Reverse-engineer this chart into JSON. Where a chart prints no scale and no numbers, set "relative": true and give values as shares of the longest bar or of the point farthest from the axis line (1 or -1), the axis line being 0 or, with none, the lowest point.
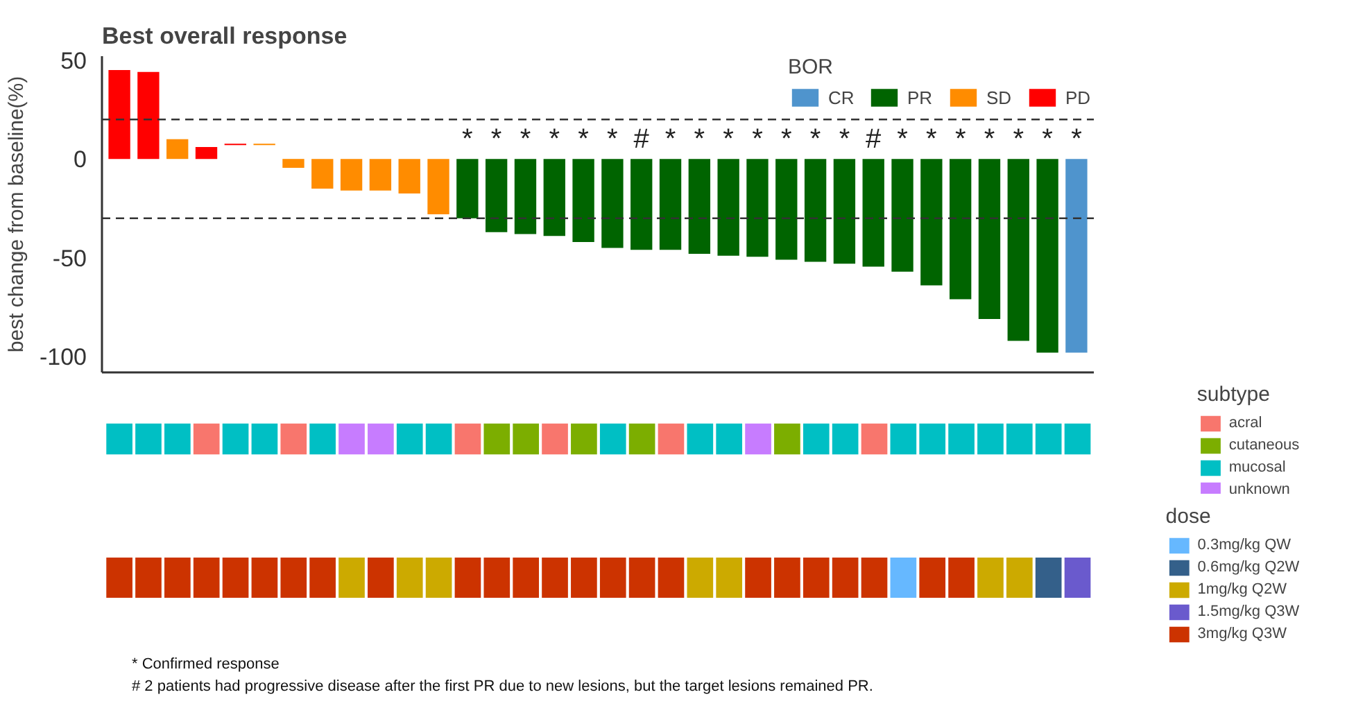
{
  "chart_data": [
    {
      "type": "bar",
      "title": "Best overall response",
      "ylabel": "best change from baseline(%)",
      "legend_title": "BOR",
      "legend": "top",
      "tick_labels": "y",
      "grid": false,
      "categories": [
        null,
        null,
        null,
        null,
        null,
        null,
        null,
        null,
        null,
        null,
        null,
        null,
        null,
        null,
        null,
        null,
        null,
        null,
        null,
        null,
        null,
        null,
        null,
        null,
        null,
        null,
        null,
        null,
        null,
        null,
        null,
        null,
        null,
        null
      ],
      "series": [
        {
          "name": "CR",
          "color": "#4f94cd",
          "values": [
            null,
            null,
            null,
            null,
            null,
            null,
            null,
            null,
            null,
            null,
            null,
            null,
            null,
            null,
            null,
            null,
            null,
            null,
            null,
            null,
            null,
            null,
            null,
            null,
            null,
            null,
            null,
            null,
            null,
            null,
            null,
            null,
            null,
            -98
          ]
        },
        {
          "name": "PR",
          "color": "#006400",
          "values": [
            null,
            null,
            null,
            null,
            null,
            null,
            null,
            null,
            null,
            null,
            null,
            null,
            -30,
            -37,
            -38,
            -39,
            -42,
            -45,
            -46,
            -46,
            -48,
            -49,
            -49.5,
            -51,
            -52,
            -53,
            -54.5,
            -57,
            -64,
            -71,
            -81,
            -92,
            -98,
            null
          ]
        },
        {
          "name": "SD",
          "color": "#ff8c00",
          "base": [
            null,
            null,
            0,
            null,
            null,
            7,
            0,
            0,
            0,
            0,
            0,
            0,
            null,
            null,
            null,
            null,
            null,
            null,
            null,
            null,
            null,
            null,
            null,
            null,
            null,
            null,
            null,
            null,
            null,
            null,
            null,
            null,
            null,
            null
          ],
          "values": [
            null,
            null,
            10,
            null,
            null,
            0.7,
            -4.5,
            -15,
            -16,
            -16,
            -17.5,
            -28,
            null,
            null,
            null,
            null,
            null,
            null,
            null,
            null,
            null,
            null,
            null,
            null,
            null,
            null,
            null,
            null,
            null,
            null,
            null,
            null,
            null,
            null
          ]
        },
        {
          "name": "PD",
          "color": "#ff0000",
          "base": [
            0,
            0,
            null,
            0,
            7,
            null,
            null,
            null,
            null,
            null,
            null,
            null,
            null,
            null,
            null,
            null,
            null,
            null,
            null,
            null,
            null,
            null,
            null,
            null,
            null,
            null,
            null,
            null,
            null,
            null,
            null,
            null,
            null,
            null
          ],
          "values": [
            45,
            44,
            null,
            6,
            0.7,
            null,
            null,
            null,
            null,
            null,
            null,
            null,
            null,
            null,
            null,
            null,
            null,
            null,
            null,
            null,
            null,
            null,
            null,
            null,
            null,
            null,
            null,
            null,
            null,
            null,
            null,
            null,
            null,
            null
          ]
        }
      ],
      "value_labels": [
        null,
        null,
        null,
        null,
        null,
        null,
        null,
        null,
        null,
        null,
        null,
        null,
        "*",
        "*",
        "*",
        "*",
        "*",
        "*",
        "#",
        "*",
        "*",
        "*",
        "*",
        "*",
        "*",
        "*",
        "#",
        "*",
        "*",
        "*",
        "*",
        "*",
        "*",
        "*"
      ],
      "ylim": [
        -108,
        52
      ],
      "yticks": [
        -100,
        -50,
        0,
        50
      ],
      "ref_lines": [
        {
          "axis": "y",
          "value": 20,
          "line_style": "dashed"
        },
        {
          "axis": "y",
          "value": -30,
          "line_style": "dashed"
        }
      ],
      "annotations": [
        "* Confirmed response",
        "# 2 patients had progressive disease after the first PR due to new lesions, but the target lesions remained PR."
      ]
    },
    {
      "type": "bar",
      "relative": true,
      "legend_title": "subtype",
      "legend": "right",
      "tick_labels": false,
      "categories": [
        null,
        null,
        null,
        null,
        null,
        null,
        null,
        null,
        null,
        null,
        null,
        null,
        null,
        null,
        null,
        null,
        null,
        null,
        null,
        null,
        null,
        null,
        null,
        null,
        null,
        null,
        null,
        null,
        null,
        null,
        null,
        null,
        null,
        null
      ],
      "series": [
        {
          "name": "acral",
          "color": "#f8766d",
          "values": [
            null,
            null,
            null,
            1,
            null,
            null,
            1,
            null,
            null,
            null,
            null,
            null,
            1,
            null,
            null,
            1,
            null,
            null,
            null,
            1,
            null,
            null,
            null,
            null,
            null,
            null,
            1,
            null,
            null,
            null,
            null,
            null,
            null,
            null
          ]
        },
        {
          "name": "cutaneous",
          "color": "#7cae00",
          "values": [
            null,
            null,
            null,
            null,
            null,
            null,
            null,
            null,
            null,
            null,
            null,
            null,
            null,
            1,
            1,
            null,
            1,
            null,
            1,
            null,
            null,
            null,
            null,
            1,
            null,
            null,
            null,
            null,
            null,
            null,
            null,
            null,
            null,
            null
          ]
        },
        {
          "name": "mucosal",
          "color": "#00bfc4",
          "values": [
            1,
            1,
            1,
            null,
            1,
            1,
            null,
            1,
            null,
            null,
            1,
            1,
            null,
            null,
            null,
            null,
            null,
            1,
            null,
            null,
            1,
            1,
            null,
            null,
            1,
            1,
            null,
            1,
            1,
            1,
            1,
            1,
            1,
            1
          ]
        },
        {
          "name": "unknown",
          "color": "#c77cff",
          "values": [
            null,
            null,
            null,
            null,
            null,
            null,
            null,
            null,
            1,
            1,
            null,
            null,
            null,
            null,
            null,
            null,
            null,
            null,
            null,
            null,
            null,
            null,
            1,
            null,
            null,
            null,
            null,
            null,
            null,
            null,
            null,
            null,
            null,
            null
          ]
        }
      ]
    },
    {
      "type": "bar",
      "relative": true,
      "legend_title": "dose",
      "legend": "right",
      "tick_labels": false,
      "categories": [
        null,
        null,
        null,
        null,
        null,
        null,
        null,
        null,
        null,
        null,
        null,
        null,
        null,
        null,
        null,
        null,
        null,
        null,
        null,
        null,
        null,
        null,
        null,
        null,
        null,
        null,
        null,
        null,
        null,
        null,
        null,
        null,
        null,
        null
      ],
      "series": [
        {
          "name": "0.3mg/kg QW",
          "color": "#66b8ff",
          "values": [
            null,
            null,
            null,
            null,
            null,
            null,
            null,
            null,
            null,
            null,
            null,
            null,
            null,
            null,
            null,
            null,
            null,
            null,
            null,
            null,
            null,
            null,
            null,
            null,
            null,
            null,
            null,
            1,
            null,
            null,
            null,
            null,
            null,
            null
          ]
        },
        {
          "name": "0.6mg/kg Q2W",
          "color": "#34608a",
          "values": [
            null,
            null,
            null,
            null,
            null,
            null,
            null,
            null,
            null,
            null,
            null,
            null,
            null,
            null,
            null,
            null,
            null,
            null,
            null,
            null,
            null,
            null,
            null,
            null,
            null,
            null,
            null,
            null,
            null,
            null,
            null,
            null,
            1,
            null
          ]
        },
        {
          "name": "1mg/kg Q2W",
          "color": "#ccaa00",
          "values": [
            null,
            null,
            null,
            null,
            null,
            null,
            null,
            null,
            1,
            null,
            1,
            1,
            null,
            null,
            null,
            null,
            null,
            null,
            null,
            null,
            1,
            1,
            null,
            null,
            null,
            null,
            null,
            null,
            null,
            null,
            1,
            1,
            null,
            null
          ]
        },
        {
          "name": "1.5mg/kg Q3W",
          "color": "#6a5acd",
          "values": [
            null,
            null,
            null,
            null,
            null,
            null,
            null,
            null,
            null,
            null,
            null,
            null,
            null,
            null,
            null,
            null,
            null,
            null,
            null,
            null,
            null,
            null,
            null,
            null,
            null,
            null,
            null,
            null,
            null,
            null,
            null,
            null,
            null,
            1
          ]
        },
        {
          "name": "3mg/kg Q3W",
          "color": "#cc3300",
          "values": [
            1,
            1,
            1,
            1,
            1,
            1,
            1,
            1,
            null,
            1,
            null,
            null,
            1,
            1,
            1,
            1,
            1,
            1,
            1,
            1,
            null,
            null,
            1,
            1,
            1,
            1,
            1,
            null,
            1,
            1,
            null,
            null,
            null,
            null
          ]
        }
      ]
    }
  ]
}
